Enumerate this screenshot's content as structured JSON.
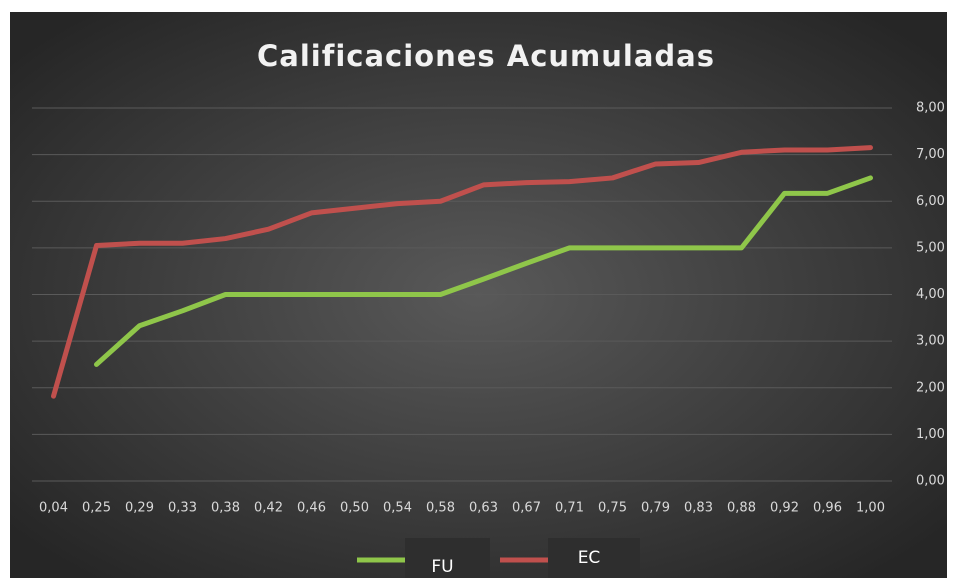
{
  "chart_data": {
    "type": "line",
    "title": "Calificaciones  Acumuladas",
    "categories": [
      "0,04",
      "0,25",
      "0,29",
      "0,33",
      "0,38",
      "0,42",
      "0,46",
      "0,50",
      "0,54",
      "0,58",
      "0,63",
      "0,67",
      "0,71",
      "0,75",
      "0,79",
      "0,83",
      "0,88",
      "0,92",
      "0,96",
      "1,00"
    ],
    "series": [
      {
        "name": "FU",
        "color": "#8fc64a",
        "values": [
          null,
          2.5,
          3.33,
          3.65,
          4.0,
          4.0,
          4.0,
          4.0,
          4.0,
          4.0,
          4.33,
          4.67,
          5.0,
          5.0,
          5.0,
          5.0,
          5.0,
          6.17,
          6.17,
          6.5
        ]
      },
      {
        "name": "EC",
        "color": "#c0504d",
        "values": [
          1.82,
          5.05,
          5.1,
          5.1,
          5.2,
          5.4,
          5.75,
          5.85,
          5.95,
          6.0,
          6.35,
          6.4,
          6.42,
          6.5,
          6.8,
          6.83,
          7.05,
          7.1,
          7.1,
          7.15
        ]
      }
    ],
    "ylim": [
      0,
      8
    ],
    "yticks": [
      {
        "value": 0,
        "label": "0,00"
      },
      {
        "value": 1,
        "label": "1,00"
      },
      {
        "value": 2,
        "label": "2,00"
      },
      {
        "value": 3,
        "label": "3,00"
      },
      {
        "value": 4,
        "label": "4,00"
      },
      {
        "value": 5,
        "label": "5,00"
      },
      {
        "value": 6,
        "label": "6,00"
      },
      {
        "value": 7,
        "label": "7,00"
      },
      {
        "value": 8,
        "label": "8,00"
      }
    ],
    "grid": true,
    "legend": "bottom"
  }
}
